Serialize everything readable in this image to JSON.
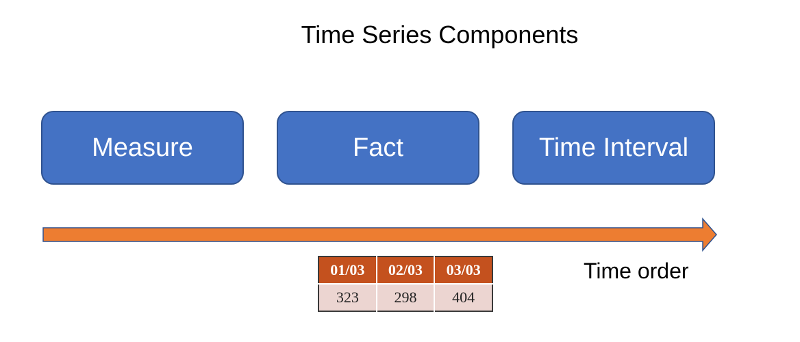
{
  "title": "Time Series Components",
  "components": [
    {
      "label": "Measure"
    },
    {
      "label": "Fact"
    },
    {
      "label": "Time Interval"
    }
  ],
  "arrow": {
    "label": "Time order",
    "color": "#ed7d31",
    "stroke_color": "#2f528f"
  },
  "table": {
    "headers": [
      "01/03",
      "02/03",
      "03/03"
    ],
    "values": [
      "323",
      "298",
      "404"
    ],
    "header_color": "#c4511e",
    "cell_color": "#ecd5d1"
  },
  "colors": {
    "box_fill": "#4472c4",
    "box_border": "#2f528f"
  }
}
